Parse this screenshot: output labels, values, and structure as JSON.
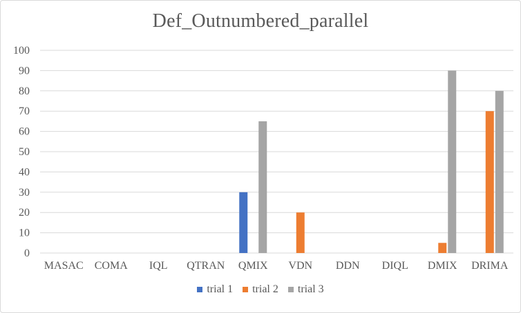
{
  "chart_data": {
    "type": "bar",
    "title": "Def_Outnumbered_parallel",
    "categories": [
      "MASAC",
      "COMA",
      "IQL",
      "QTRAN",
      "QMIX",
      "VDN",
      "DDN",
      "DIQL",
      "DMIX",
      "DRIMA"
    ],
    "series": [
      {
        "name": "trial 1",
        "color": "#4472c4",
        "values": [
          0,
          0,
          0,
          0,
          30,
          0,
          0,
          0,
          0,
          0
        ]
      },
      {
        "name": "trial 2",
        "color": "#ed7d31",
        "values": [
          0,
          0,
          0,
          0,
          0,
          20,
          0,
          0,
          5,
          70
        ]
      },
      {
        "name": "trial 3",
        "color": "#a5a5a5",
        "values": [
          0,
          0,
          0,
          0,
          65,
          0,
          0,
          0,
          90,
          80
        ]
      }
    ],
    "ylim": [
      0,
      100
    ],
    "yticks": [
      0,
      10,
      20,
      30,
      40,
      50,
      60,
      70,
      80,
      90,
      100
    ],
    "grid": true,
    "legend_position": "bottom",
    "xlabel": "",
    "ylabel": ""
  }
}
